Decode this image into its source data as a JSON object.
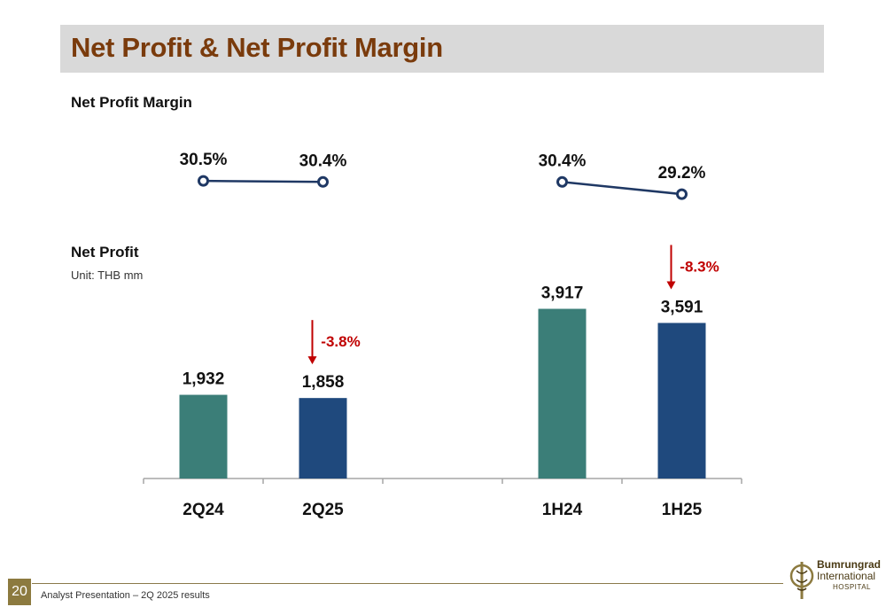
{
  "slide": {
    "title": "Net Profit & Net Profit Margin",
    "margin_label": "Net Profit Margin",
    "profit_label": "Net Profit",
    "unit": "Unit: THB mm",
    "page_number": "20",
    "footer": "Analyst Presentation – 2Q 2025 results",
    "logo": {
      "line1": "Bumrungrad",
      "line2": "International",
      "line3": "HOSPITAL"
    }
  },
  "colors": {
    "teal": "#3b7e78",
    "navy": "#1f497d",
    "line": "#1f3864",
    "change": "#c00000",
    "title": "#7a3b0c"
  },
  "chart_data": [
    {
      "type": "bar",
      "title": "Net Profit",
      "categories": [
        "2Q24",
        "2Q25",
        "",
        "1H24",
        "1H25"
      ],
      "values": [
        1932,
        1858,
        null,
        3917,
        3591
      ],
      "labels": [
        "1,932",
        "1,858",
        "",
        "3,917",
        "3,591"
      ],
      "bar_colors": [
        "#3b7e78",
        "#1f497d",
        null,
        "#3b7e78",
        "#1f497d"
      ],
      "ylim": [
        0,
        4500
      ],
      "changes": [
        {
          "category": "2Q25",
          "label": "-3.8%"
        },
        {
          "category": "1H25",
          "label": "-8.3%"
        }
      ]
    },
    {
      "type": "line",
      "title": "Net Profit Margin",
      "segments": [
        {
          "categories": [
            "2Q24",
            "2Q25"
          ],
          "values": [
            30.5,
            30.4
          ],
          "labels": [
            "30.5%",
            "30.4%"
          ]
        },
        {
          "categories": [
            "1H24",
            "1H25"
          ],
          "values": [
            30.4,
            29.2
          ],
          "labels": [
            "30.4%",
            "29.2%"
          ]
        }
      ]
    }
  ]
}
